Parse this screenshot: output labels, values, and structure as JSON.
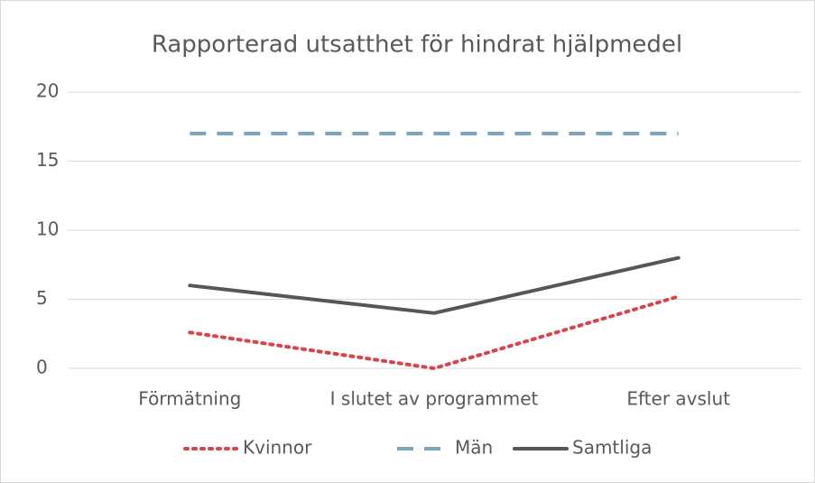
{
  "chart_data": {
    "type": "line",
    "title": "Rapporterad utsatthet för hindrat hjälpmedel",
    "categories": [
      "Förmätning",
      "I slutet av programmet",
      "Efter avslut"
    ],
    "series": [
      {
        "name": "Kvinnor",
        "color": "#d8434c",
        "dash": "dotted",
        "values": [
          2.6,
          0,
          5.2
        ]
      },
      {
        "name": "Män",
        "color": "#7ba4ba",
        "dash": "dashed",
        "values": [
          17,
          17,
          17
        ]
      },
      {
        "name": "Samtliga",
        "color": "#545754",
        "dash": "solid",
        "values": [
          6,
          4,
          8
        ]
      }
    ],
    "ylim": [
      0,
      20
    ],
    "yticks": [
      0,
      5,
      10,
      15,
      20
    ],
    "grid": true,
    "legend": "bottom"
  }
}
